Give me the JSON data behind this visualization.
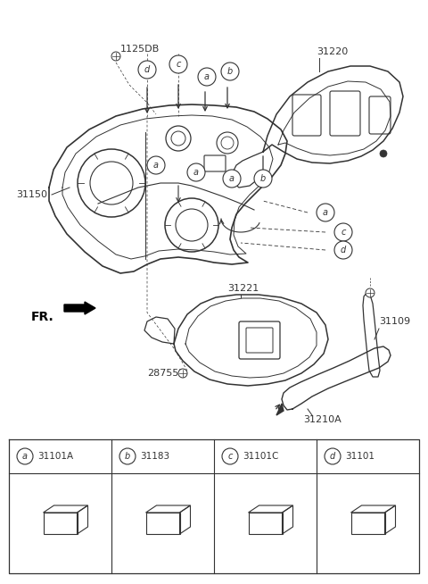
{
  "bg_color": "#ffffff",
  "line_color": "#333333",
  "fig_width": 4.8,
  "fig_height": 6.54,
  "dpi": 100,
  "parts": [
    {
      "letter": "a",
      "part_num": "31101A"
    },
    {
      "letter": "b",
      "part_num": "31183"
    },
    {
      "letter": "c",
      "part_num": "31101C"
    },
    {
      "letter": "d",
      "part_num": "31101"
    }
  ]
}
